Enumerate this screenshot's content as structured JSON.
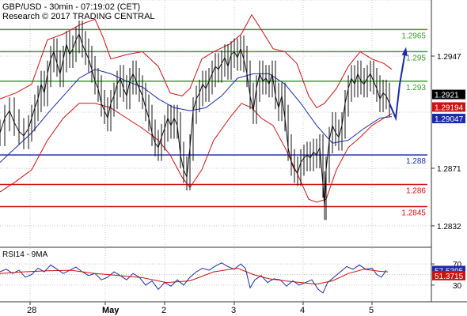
{
  "header": {
    "line1": "GBP/USD - 30min - 07:19:02 (CET)",
    "line2": "Research © 2017 TRADING CENTRAL"
  },
  "chart_data": {
    "type": "line",
    "instrument": "GBP/USD",
    "timeframe": "30min",
    "ylim": [
      1.2818,
      1.2985
    ],
    "y_ticks": [
      "1.2947",
      "1.2871",
      "1.2832"
    ],
    "x_ticks": [
      "28",
      "May",
      "2",
      "3",
      "4",
      "5"
    ],
    "grid": true,
    "price_series": [
      [
        0,
        1.2895
      ],
      [
        6,
        1.2905
      ],
      [
        12,
        1.291
      ],
      [
        18,
        1.2902
      ],
      [
        24,
        1.2896
      ],
      [
        30,
        1.2893
      ],
      [
        36,
        1.2898
      ],
      [
        40,
        1.2905
      ],
      [
        44,
        1.2912
      ],
      [
        48,
        1.2918
      ],
      [
        52,
        1.2928
      ],
      [
        56,
        1.2922
      ],
      [
        60,
        1.2935
      ],
      [
        64,
        1.2945
      ],
      [
        68,
        1.295
      ],
      [
        72,
        1.2942
      ],
      [
        76,
        1.2935
      ],
      [
        80,
        1.2945
      ],
      [
        84,
        1.2955
      ],
      [
        88,
        1.2948
      ],
      [
        92,
        1.2952
      ],
      [
        96,
        1.2958
      ],
      [
        100,
        1.2962
      ],
      [
        104,
        1.2955
      ],
      [
        108,
        1.295
      ],
      [
        112,
        1.2945
      ],
      [
        116,
        1.2938
      ],
      [
        120,
        1.293
      ],
      [
        124,
        1.2925
      ],
      [
        128,
        1.2915
      ],
      [
        132,
        1.291
      ],
      [
        136,
        1.2905
      ],
      [
        140,
        1.2915
      ],
      [
        144,
        1.292
      ],
      [
        148,
        1.2928
      ],
      [
        152,
        1.2932
      ],
      [
        156,
        1.2925
      ],
      [
        160,
        1.292
      ],
      [
        164,
        1.293
      ],
      [
        168,
        1.2935
      ],
      [
        172,
        1.293
      ],
      [
        176,
        1.2925
      ],
      [
        180,
        1.292
      ],
      [
        184,
        1.2912
      ],
      [
        188,
        1.2905
      ],
      [
        192,
        1.2895
      ],
      [
        196,
        1.2888
      ],
      [
        200,
        1.2885
      ],
      [
        204,
        1.2892
      ],
      [
        208,
        1.2898
      ],
      [
        212,
        1.2905
      ],
      [
        216,
        1.29
      ],
      [
        220,
        1.2905
      ],
      [
        224,
        1.29
      ],
      [
        228,
        1.288
      ],
      [
        232,
        1.287
      ],
      [
        236,
        1.2865
      ],
      [
        240,
        1.2885
      ],
      [
        244,
        1.291
      ],
      [
        248,
        1.2918
      ],
      [
        252,
        1.2922
      ],
      [
        256,
        1.2928
      ],
      [
        260,
        1.2925
      ],
      [
        264,
        1.293
      ],
      [
        268,
        1.2935
      ],
      [
        272,
        1.294
      ],
      [
        276,
        1.2938
      ],
      [
        280,
        1.2942
      ],
      [
        284,
        1.2946
      ],
      [
        288,
        1.294
      ],
      [
        292,
        1.2948
      ],
      [
        296,
        1.295
      ],
      [
        300,
        1.2946
      ],
      [
        304,
        1.2952
      ],
      [
        308,
        1.2945
      ],
      [
        312,
        1.2935
      ],
      [
        316,
        1.292
      ],
      [
        320,
        1.291
      ],
      [
        324,
        1.2925
      ],
      [
        328,
        1.2935
      ],
      [
        332,
        1.293
      ],
      [
        336,
        1.2932
      ],
      [
        340,
        1.2928
      ],
      [
        344,
        1.2935
      ],
      [
        348,
        1.292
      ],
      [
        352,
        1.2912
      ],
      [
        356,
        1.292
      ],
      [
        360,
        1.2905
      ],
      [
        364,
        1.2885
      ],
      [
        368,
        1.2875
      ],
      [
        372,
        1.287
      ],
      [
        376,
        1.2868
      ],
      [
        380,
        1.2875
      ],
      [
        384,
        1.2878
      ],
      [
        388,
        1.288
      ],
      [
        392,
        1.2878
      ],
      [
        396,
        1.2882
      ],
      [
        400,
        1.288
      ],
      [
        404,
        1.2885
      ],
      [
        408,
        1.286
      ],
      [
        410,
        1.2845
      ],
      [
        412,
        1.287
      ],
      [
        416,
        1.289
      ],
      [
        420,
        1.29
      ],
      [
        424,
        1.2895
      ],
      [
        428,
        1.2892
      ],
      [
        432,
        1.29
      ],
      [
        436,
        1.2915
      ],
      [
        440,
        1.2925
      ],
      [
        444,
        1.2932
      ],
      [
        448,
        1.2928
      ],
      [
        452,
        1.2935
      ],
      [
        456,
        1.293
      ],
      [
        460,
        1.2928
      ],
      [
        464,
        1.2932
      ],
      [
        468,
        1.2935
      ],
      [
        472,
        1.293
      ],
      [
        476,
        1.2925
      ],
      [
        480,
        1.2918
      ],
      [
        484,
        1.2922
      ],
      [
        488,
        1.292
      ],
      [
        492,
        1.2915
      ]
    ],
    "ma_series": [
      [
        0,
        1.2875
      ],
      [
        20,
        1.2885
      ],
      [
        40,
        1.2895
      ],
      [
        60,
        1.2908
      ],
      [
        80,
        1.292
      ],
      [
        100,
        1.2932
      ],
      [
        120,
        1.2938
      ],
      [
        140,
        1.2935
      ],
      [
        160,
        1.293
      ],
      [
        180,
        1.2926
      ],
      [
        200,
        1.2918
      ],
      [
        220,
        1.2912
      ],
      [
        240,
        1.291
      ],
      [
        260,
        1.2912
      ],
      [
        280,
        1.292
      ],
      [
        300,
        1.2932
      ],
      [
        320,
        1.2935
      ],
      [
        340,
        1.2935
      ],
      [
        360,
        1.2928
      ],
      [
        380,
        1.2915
      ],
      [
        400,
        1.29
      ],
      [
        420,
        1.2888
      ],
      [
        440,
        1.289
      ],
      [
        460,
        1.2898
      ],
      [
        480,
        1.2905
      ],
      [
        495,
        1.2906
      ]
    ],
    "bollinger_upper": [
      [
        0,
        1.2918
      ],
      [
        20,
        1.2922
      ],
      [
        40,
        1.2928
      ],
      [
        60,
        1.2958
      ],
      [
        80,
        1.2962
      ],
      [
        100,
        1.2968
      ],
      [
        120,
        1.2972
      ],
      [
        130,
        1.296
      ],
      [
        140,
        1.2945
      ],
      [
        160,
        1.2948
      ],
      [
        180,
        1.295
      ],
      [
        200,
        1.294
      ],
      [
        215,
        1.2922
      ],
      [
        230,
        1.292
      ],
      [
        240,
        1.2925
      ],
      [
        255,
        1.2945
      ],
      [
        270,
        1.295
      ],
      [
        290,
        1.2955
      ],
      [
        305,
        1.2962
      ],
      [
        318,
        1.2975
      ],
      [
        330,
        1.2965
      ],
      [
        345,
        1.2952
      ],
      [
        360,
        1.295
      ],
      [
        375,
        1.2942
      ],
      [
        390,
        1.292
      ],
      [
        400,
        1.2912
      ],
      [
        410,
        1.2915
      ],
      [
        425,
        1.2925
      ],
      [
        440,
        1.294
      ],
      [
        455,
        1.295
      ],
      [
        470,
        1.2945
      ],
      [
        485,
        1.2942
      ],
      [
        495,
        1.2938
      ]
    ],
    "bollinger_lower": [
      [
        0,
        1.2855
      ],
      [
        20,
        1.2862
      ],
      [
        40,
        1.287
      ],
      [
        60,
        1.289
      ],
      [
        80,
        1.2905
      ],
      [
        100,
        1.2915
      ],
      [
        120,
        1.2915
      ],
      [
        140,
        1.2912
      ],
      [
        160,
        1.2905
      ],
      [
        180,
        1.2898
      ],
      [
        200,
        1.289
      ],
      [
        215,
        1.288
      ],
      [
        230,
        1.2865
      ],
      [
        240,
        1.2858
      ],
      [
        255,
        1.287
      ],
      [
        270,
        1.289
      ],
      [
        290,
        1.2905
      ],
      [
        305,
        1.2915
      ],
      [
        318,
        1.2912
      ],
      [
        330,
        1.2905
      ],
      [
        345,
        1.29
      ],
      [
        360,
        1.2885
      ],
      [
        375,
        1.2868
      ],
      [
        390,
        1.285
      ],
      [
        400,
        1.2848
      ],
      [
        412,
        1.285
      ],
      [
        425,
        1.287
      ],
      [
        440,
        1.2885
      ],
      [
        455,
        1.2892
      ],
      [
        470,
        1.29
      ],
      [
        485,
        1.2905
      ],
      [
        495,
        1.2908
      ]
    ],
    "forecast_arrow": [
      [
        492,
        1.2915
      ],
      [
        500,
        1.2905
      ],
      [
        505,
        1.2928
      ],
      [
        512,
        1.295
      ]
    ],
    "levels": [
      {
        "label": "1.2965",
        "value": 1.2965,
        "color": "#3a9a2a"
      },
      {
        "label": "1.295",
        "value": 1.295,
        "color": "#3a9a2a"
      },
      {
        "label": "1.293",
        "value": 1.293,
        "color": "#3a9a2a"
      },
      {
        "label": "1.288",
        "value": 1.288,
        "color": "#1a2aaa"
      },
      {
        "label": "1.286",
        "value": 1.286,
        "color": "#cc1111"
      },
      {
        "label": "1.2845",
        "value": 1.2845,
        "color": "#cc1111"
      }
    ],
    "price_tags": [
      {
        "label": "1.2921",
        "value": 1.2921,
        "bg": "#000000",
        "fg": "#ffffff"
      },
      {
        "label": "1.29194",
        "value": 1.29125,
        "bg": "#cc1111",
        "fg": "#ffffff"
      },
      {
        "label": "1.29047",
        "value": 1.29047,
        "bg": "#1a2aaa",
        "fg": "#ffffff"
      }
    ],
    "rsi": {
      "title": "RSI14 - 9MA",
      "ylim": [
        0,
        100
      ],
      "y_ticks": [
        "70",
        "30"
      ],
      "rsi_series": [
        [
          0,
          55
        ],
        [
          8,
          60
        ],
        [
          16,
          52
        ],
        [
          24,
          58
        ],
        [
          32,
          45
        ],
        [
          40,
          50
        ],
        [
          48,
          62
        ],
        [
          56,
          55
        ],
        [
          64,
          68
        ],
        [
          72,
          60
        ],
        [
          80,
          52
        ],
        [
          88,
          58
        ],
        [
          96,
          64
        ],
        [
          104,
          55
        ],
        [
          112,
          48
        ],
        [
          120,
          52
        ],
        [
          128,
          40
        ],
        [
          136,
          45
        ],
        [
          144,
          55
        ],
        [
          152,
          48
        ],
        [
          160,
          40
        ],
        [
          168,
          52
        ],
        [
          176,
          45
        ],
        [
          184,
          30
        ],
        [
          192,
          38
        ],
        [
          200,
          22
        ],
        [
          208,
          35
        ],
        [
          216,
          28
        ],
        [
          224,
          40
        ],
        [
          232,
          30
        ],
        [
          240,
          45
        ],
        [
          248,
          55
        ],
        [
          256,
          62
        ],
        [
          264,
          58
        ],
        [
          272,
          66
        ],
        [
          280,
          72
        ],
        [
          288,
          65
        ],
        [
          296,
          60
        ],
        [
          304,
          70
        ],
        [
          310,
          62
        ],
        [
          316,
          25
        ],
        [
          322,
          40
        ],
        [
          330,
          48
        ],
        [
          338,
          35
        ],
        [
          346,
          42
        ],
        [
          354,
          40
        ],
        [
          362,
          28
        ],
        [
          370,
          38
        ],
        [
          378,
          30
        ],
        [
          386,
          35
        ],
        [
          394,
          40
        ],
        [
          402,
          22
        ],
        [
          408,
          15
        ],
        [
          414,
          35
        ],
        [
          422,
          45
        ],
        [
          430,
          55
        ],
        [
          438,
          65
        ],
        [
          446,
          60
        ],
        [
          454,
          68
        ],
        [
          462,
          60
        ],
        [
          470,
          62
        ],
        [
          476,
          50
        ],
        [
          482,
          45
        ],
        [
          488,
          58
        ]
      ],
      "ma_series": [
        [
          0,
          52
        ],
        [
          30,
          55
        ],
        [
          60,
          57
        ],
        [
          90,
          58
        ],
        [
          120,
          52
        ],
        [
          150,
          48
        ],
        [
          180,
          44
        ],
        [
          210,
          35
        ],
        [
          240,
          38
        ],
        [
          270,
          55
        ],
        [
          300,
          62
        ],
        [
          320,
          50
        ],
        [
          340,
          42
        ],
        [
          360,
          38
        ],
        [
          380,
          35
        ],
        [
          400,
          32
        ],
        [
          420,
          38
        ],
        [
          440,
          52
        ],
        [
          460,
          60
        ],
        [
          480,
          56
        ],
        [
          490,
          55
        ]
      ],
      "tags": [
        {
          "label": "57.5395",
          "value": 57.5395,
          "bg": "#1a2aaa",
          "fg": "#ffffff"
        },
        {
          "label": "51.3715",
          "value": 48,
          "bg": "#cc1111",
          "fg": "#ffffff"
        }
      ]
    }
  }
}
